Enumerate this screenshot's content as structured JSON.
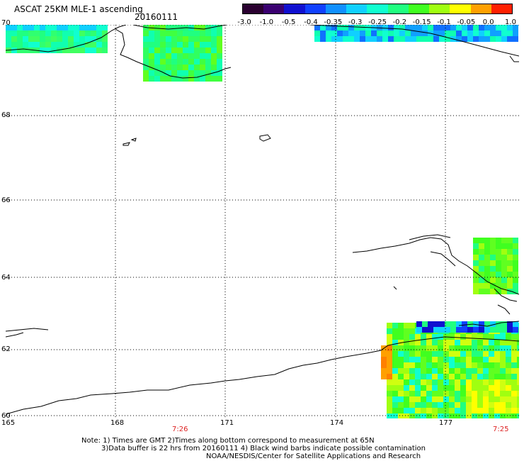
{
  "header": {
    "title": "ASCAT 25KM MLE-1 ascending",
    "date": "20160111"
  },
  "colorbar": {
    "labels": [
      "-3.0",
      "-1.0",
      "-0.5",
      "-0.4",
      "-0.35",
      "-0.3",
      "-0.25",
      "-0.2",
      "-0.15",
      "-0.1",
      "-0.05",
      "0.0",
      "1.0"
    ],
    "colors": [
      "#2a0030",
      "#3a0070",
      "#1010d0",
      "#1040ff",
      "#1090ff",
      "#10d0ff",
      "#10ffd0",
      "#20ff80",
      "#40ff20",
      "#a0ff10",
      "#ffff00",
      "#ffa000",
      "#ff2000"
    ]
  },
  "axes": {
    "lat_labels": [
      "70",
      "68",
      "66",
      "64",
      "62",
      "60"
    ],
    "lon_labels": [
      "165",
      "168",
      "171",
      "174",
      "177"
    ]
  },
  "times": {
    "left": "7:26",
    "right": "7:25"
  },
  "notes": {
    "line1": "Note: 1) Times are GMT 2)Times along bottom correspond to measurement at 65N",
    "line2": "3)Data buffer is 22 hrs from 20160111 4) Black wind barbs indicate possible contamination",
    "line3": "NOAA/NESDIS/Center for Satellite Applications and Research"
  }
}
